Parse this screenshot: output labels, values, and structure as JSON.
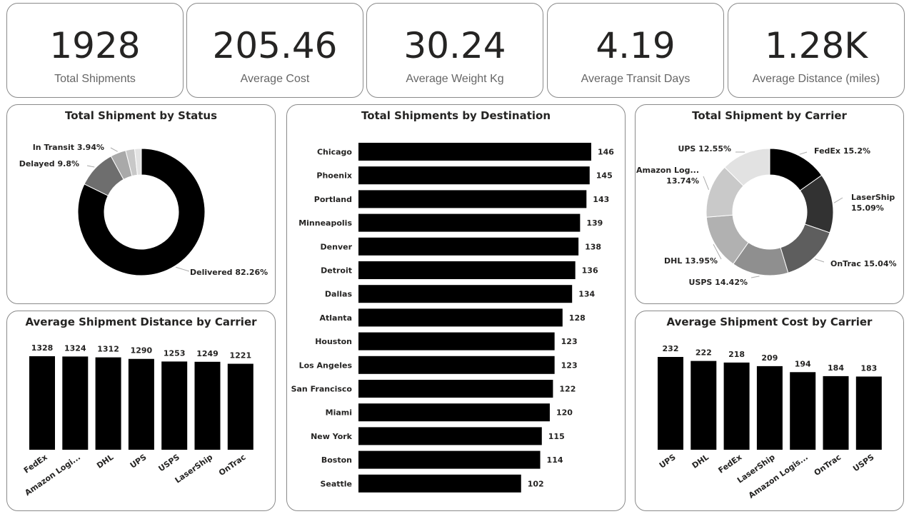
{
  "kpis": [
    {
      "value": "1928",
      "label": "Total Shipments"
    },
    {
      "value": "205.46",
      "label": "Average Cost"
    },
    {
      "value": "30.24",
      "label": "Average Weight Kg"
    },
    {
      "value": "4.19",
      "label": "Average Transit Days"
    },
    {
      "value": "1.28K",
      "label": "Average Distance (miles)"
    }
  ],
  "chart_data": [
    {
      "id": "status",
      "type": "pie",
      "title": "Total Shipment by Status",
      "hole": true,
      "slices": [
        {
          "name": "Delivered",
          "value": 82.26,
          "label": "Delivered 82.26%",
          "color": "#000000"
        },
        {
          "name": "Delayed",
          "value": 9.8,
          "label": "Delayed 9.8%",
          "color": "#6e6e6e"
        },
        {
          "name": "In Transit",
          "value": 3.94,
          "label": "In Transit 3.94%",
          "color": "#a9a9a9"
        },
        {
          "name": "",
          "value": 2.3,
          "label": "",
          "color": "#c8c8c8"
        },
        {
          "name": "",
          "value": 1.7,
          "label": "",
          "color": "#e3e3e3"
        }
      ]
    },
    {
      "id": "destination",
      "type": "bar",
      "orientation": "horizontal",
      "title": "Total Shipments by Destination",
      "categories": [
        "Chicago",
        "Phoenix",
        "Portland",
        "Minneapolis",
        "Denver",
        "Detroit",
        "Dallas",
        "Atlanta",
        "Houston",
        "Los Angeles",
        "San Francisco",
        "Miami",
        "New York",
        "Boston",
        "Seattle"
      ],
      "values": [
        146,
        145,
        143,
        139,
        138,
        136,
        134,
        128,
        123,
        123,
        122,
        120,
        115,
        114,
        102
      ],
      "xlim": [
        0,
        146
      ],
      "color": "#000000"
    },
    {
      "id": "carrier",
      "type": "pie",
      "title": "Total Shipment by Carrier",
      "hole": true,
      "slices": [
        {
          "name": "FedEx",
          "value": 15.2,
          "label": "FedEx 15.2%",
          "color": "#000000"
        },
        {
          "name": "LaserShip",
          "value": 15.09,
          "label": "LaserShip 15.09%",
          "color": "#323232"
        },
        {
          "name": "OnTrac",
          "value": 15.04,
          "label": "OnTrac 15.04%",
          "color": "#5e5e5e"
        },
        {
          "name": "USPS",
          "value": 14.42,
          "label": "USPS 14.42%",
          "color": "#8f8f8f"
        },
        {
          "name": "DHL",
          "value": 13.95,
          "label": "DHL 13.95%",
          "color": "#b1b1b1"
        },
        {
          "name": "Amazon Log...",
          "value": 13.74,
          "label": "Amazon Log... 13.74%",
          "color": "#c9c9c9"
        },
        {
          "name": "UPS",
          "value": 12.55,
          "label": "UPS 12.55%",
          "color": "#e2e2e2"
        }
      ]
    },
    {
      "id": "distance",
      "type": "bar",
      "title": "Average Shipment Distance by Carrier",
      "categories": [
        "FedEx",
        "Amazon Logi...",
        "DHL",
        "UPS",
        "USPS",
        "LaserShip",
        "OnTrac"
      ],
      "values": [
        1328,
        1324,
        1312,
        1290,
        1253,
        1249,
        1221
      ],
      "ylim": [
        0,
        1328
      ],
      "color": "#000000"
    },
    {
      "id": "cost",
      "type": "bar",
      "title": "Average Shipment Cost by Carrier",
      "categories": [
        "UPS",
        "DHL",
        "FedEx",
        "LaserShip",
        "Amazon Logis...",
        "OnTrac",
        "USPS"
      ],
      "values": [
        232,
        222,
        218,
        209,
        194,
        184,
        183
      ],
      "ylim": [
        0,
        232
      ],
      "color": "#000000"
    }
  ]
}
